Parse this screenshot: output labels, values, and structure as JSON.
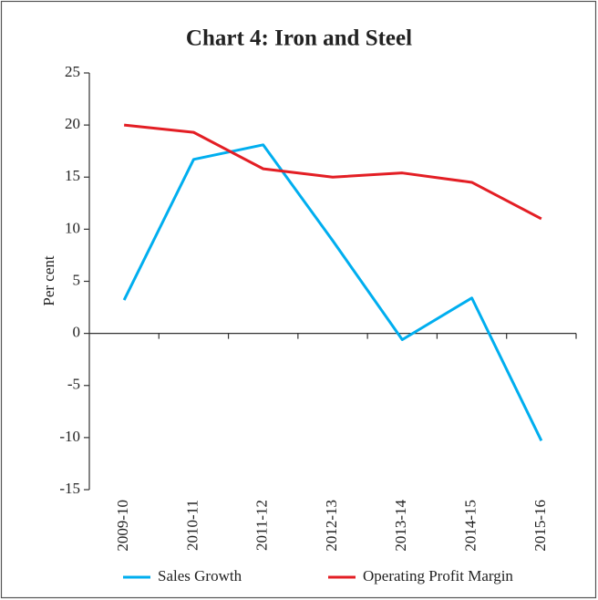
{
  "chart_data": {
    "type": "line",
    "title": "Chart 4: Iron and Steel",
    "ylabel": "Per cent",
    "categories": [
      "2009-10",
      "2010-11",
      "2011-12",
      "2012-13",
      "2013-14",
      "2014-15",
      "2015-16"
    ],
    "series": [
      {
        "name": "Sales Growth",
        "color": "#00aeef",
        "values": [
          3.2,
          16.7,
          18.1,
          8.9,
          -0.6,
          3.4,
          -10.3
        ]
      },
      {
        "name": "Operating Profit Margin",
        "color": "#e31e24",
        "values": [
          20.0,
          19.3,
          15.8,
          15.0,
          15.4,
          14.5,
          11.0
        ]
      }
    ],
    "ylim": [
      -15,
      25
    ],
    "yticks": [
      -15,
      -10,
      -5,
      0,
      5,
      10,
      15,
      20,
      25
    ],
    "grid": false,
    "legend": "bottom"
  }
}
